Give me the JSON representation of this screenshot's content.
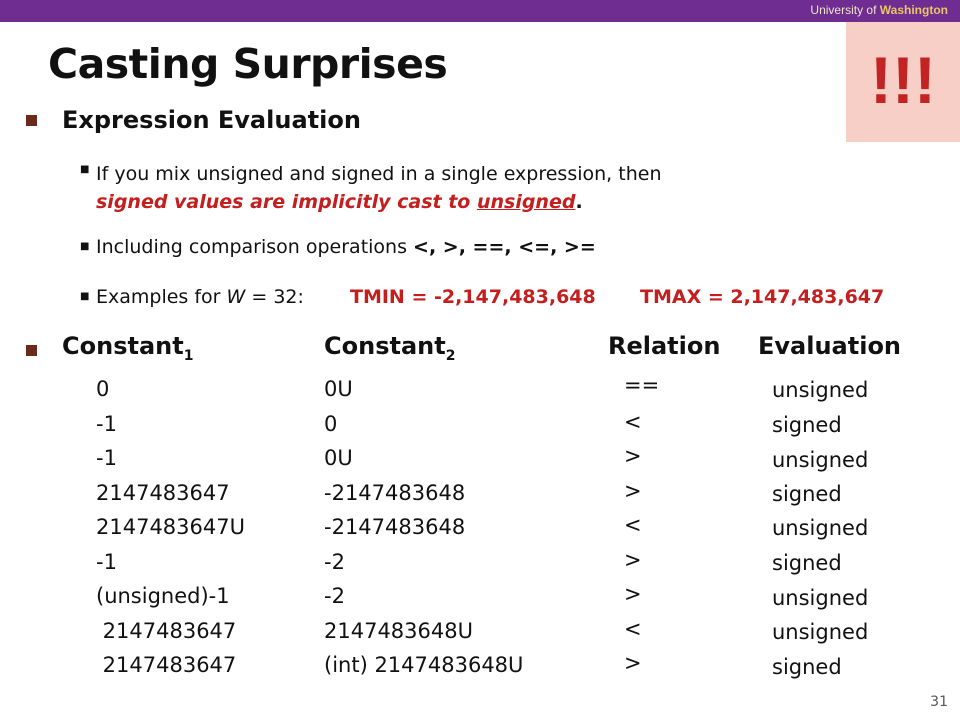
{
  "header": {
    "univ_prefix": "University of ",
    "univ_name": "Washington"
  },
  "title": "Casting Surprises",
  "alarm": "!!!",
  "section1": {
    "heading": "Expression Evaluation",
    "items": [
      {
        "pre": "If you mix unsigned and signed in a single expression, then",
        "red1": "signed values are implicitly cast to ",
        "red_u": "unsigned",
        "end": "."
      },
      {
        "text": "Including comparison operations ",
        "ops": "<, >, ==, <=, >="
      },
      {
        "text_a": "Examples for ",
        "w": "W",
        "text_b": " = 32:",
        "tmin": "TMIN = -2,147,483,648",
        "tmax": "TMAX = 2,147,483,647"
      }
    ]
  },
  "table": {
    "headers": {
      "c1": "Constant",
      "c1_sub": "1",
      "c2": "Constant",
      "c2_sub": "2",
      "rel": "Relation",
      "eval": "Evaluation"
    },
    "rows": [
      {
        "c1": "0",
        "c2": "0U",
        "rel": "==",
        "ev": "unsigned"
      },
      {
        "c1": "-1",
        "c2": "0",
        "rel": "<",
        "ev": "signed"
      },
      {
        "c1": "-1",
        "c2": "0U",
        "rel": ">",
        "ev": "unsigned"
      },
      {
        "c1": "2147483647",
        "c2": "-2147483648",
        "rel": ">",
        "ev": "signed"
      },
      {
        "c1": "2147483647U",
        "c2": "-2147483648",
        "rel": "<",
        "ev": "unsigned"
      },
      {
        "c1": "-1",
        "c2": "-2",
        "rel": ">",
        "ev": "signed"
      },
      {
        "c1": "(unsigned)-1",
        "c2": "-2",
        "rel": ">",
        "ev": "unsigned"
      },
      {
        "c1": " 2147483647",
        "c2": "2147483648U",
        "rel": "<",
        "ev": "unsigned"
      },
      {
        "c1": " 2147483647",
        "c2": "(int) 2147483648U",
        "rel": ">",
        "ev": "signed"
      }
    ]
  },
  "page_number": "31",
  "colors": {
    "topbar": "#6f2c91",
    "accent_red": "#c41e1e",
    "alarm_bg": "#f7cfc6"
  }
}
